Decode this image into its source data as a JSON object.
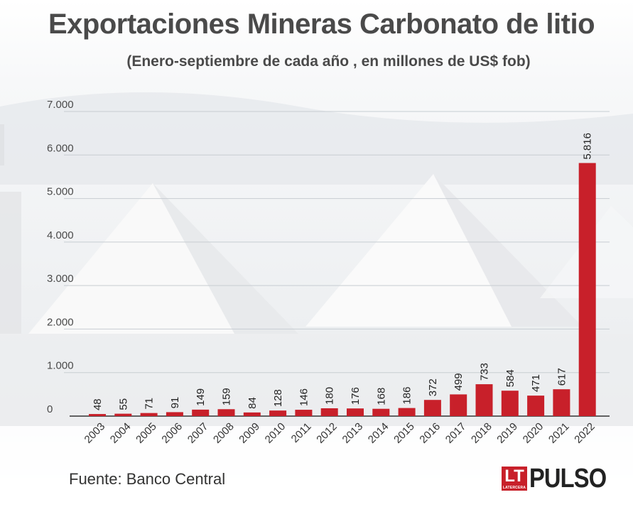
{
  "title": "Exportaciones Mineras Carbonato de litio",
  "subtitle": "(Enero-septiembre de cada año , en millones de US$ fob)",
  "source": "Fuente: Banco Central",
  "logo": {
    "lt": "LT",
    "lt_small": "LATERCERA",
    "pulso": "PULSO"
  },
  "colors": {
    "bar": "#c8202a",
    "text": "#4a4a4a",
    "grid": "#c7cdd2"
  },
  "chart_data": {
    "type": "bar",
    "title": "Exportaciones Mineras Carbonato de litio",
    "subtitle": "(Enero-septiembre de cada año , en millones de US$ fob)",
    "xlabel": "",
    "ylabel": "",
    "ylim": [
      0,
      7000
    ],
    "yticks": [
      0,
      1000,
      2000,
      3000,
      4000,
      5000,
      6000,
      7000
    ],
    "ytick_labels": [
      "0",
      "1.000",
      "2.000",
      "3.000",
      "4.000",
      "5.000",
      "6.000",
      "7.000"
    ],
    "grid": true,
    "categories": [
      "2003",
      "2004",
      "2005",
      "2006",
      "2007",
      "2008",
      "2009",
      "2010",
      "2011",
      "2012",
      "2013",
      "2014",
      "2015",
      "2016",
      "2017",
      "2018",
      "2019",
      "2020",
      "2021",
      "2022"
    ],
    "values": [
      48,
      55,
      71,
      91,
      149,
      159,
      84,
      128,
      146,
      180,
      176,
      168,
      186,
      372,
      499,
      733,
      584,
      471,
      617,
      5816
    ],
    "value_labels": [
      "48",
      "55",
      "71",
      "91",
      "149",
      "159",
      "84",
      "128",
      "146",
      "180",
      "176",
      "168",
      "186",
      "372",
      "499",
      "733",
      "584",
      "471",
      "617",
      "5.816"
    ]
  }
}
